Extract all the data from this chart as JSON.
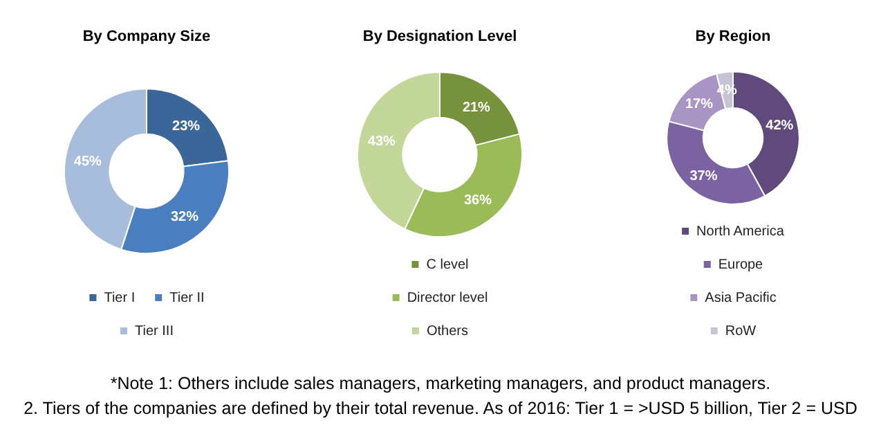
{
  "chart_data": [
    {
      "type": "donut",
      "title": "By Company Size",
      "categories": [
        "Tier I",
        "Tier II",
        "Tier III"
      ],
      "values": [
        23,
        32,
        45
      ],
      "value_labels": [
        "23%",
        "32%",
        "45%"
      ],
      "colors": [
        "#3a6699",
        "#4a7ebf",
        "#a8bcdb"
      ],
      "legend": "bottom",
      "annotations": [
        "*Note 1: Others include sales managers, marketing managers, and product managers.",
        "2. Tiers of the companies are defined by their total revenue. As of 2016: Tier 1 = >USD 5 billion, Tier 2 = USD"
      ]
    },
    {
      "type": "donut",
      "title": "By Designation Level",
      "categories": [
        "C level",
        "Director level",
        "Others"
      ],
      "values": [
        21,
        36,
        43
      ],
      "value_labels": [
        "21%",
        "36%",
        "43%"
      ],
      "colors": [
        "#76923c",
        "#9bbb59",
        "#c4d79b"
      ],
      "legend": "bottom"
    },
    {
      "type": "donut",
      "title": "By Region",
      "categories": [
        "North America",
        "Europe",
        "Asia Pacific",
        "RoW"
      ],
      "values": [
        42,
        37,
        17,
        4
      ],
      "value_labels": [
        "42%",
        "37%",
        "17%",
        "4%"
      ],
      "colors": [
        "#5f4a7b",
        "#7b62a0",
        "#a895c3",
        "#c9c3d6"
      ],
      "legend": "bottom"
    }
  ]
}
